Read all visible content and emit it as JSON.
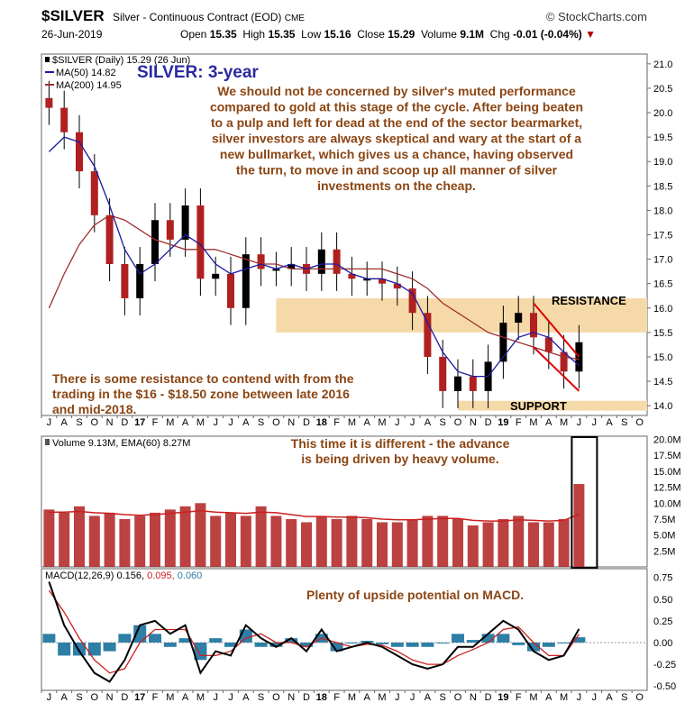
{
  "header": {
    "symbol": "$SILVER",
    "description": "Silver - Continuous Contract (EOD)",
    "exchange": "CME",
    "logo": "© StockCharts.com",
    "date": "26-Jun-2019",
    "open_label": "Open",
    "open": "15.35",
    "high_label": "High",
    "high": "15.35",
    "low_label": "Low",
    "low": "15.16",
    "close_label": "Close",
    "close": "15.29",
    "volume_label": "Volume",
    "volume": "9.1M",
    "chg_label": "Chg",
    "chg": "-0.01 (-0.04%)",
    "chg_icon": "down-triangle-icon"
  },
  "chart_data": [
    {
      "type": "candlestick",
      "panel": "price",
      "legend": {
        "main": "$SILVER (Daily) 15.29 (26 Jun)",
        "ma50": "MA(50) 14.82",
        "ma200": "MA(200) 14.95"
      },
      "ylim": [
        13.8,
        21.2
      ],
      "yticks": [
        "21.0",
        "20.5",
        "20.0",
        "19.5",
        "19.0",
        "18.5",
        "18.0",
        "17.5",
        "17.0",
        "16.5",
        "16.0",
        "15.5",
        "15.0",
        "14.5",
        "14.0"
      ],
      "x": [
        "2016-07",
        "2016-08",
        "2016-09",
        "2016-10",
        "2016-11",
        "2016-12",
        "2017-01",
        "2017-02",
        "2017-03",
        "2017-04",
        "2017-05",
        "2017-06",
        "2017-07",
        "2017-08",
        "2017-09",
        "2017-10",
        "2017-11",
        "2017-12",
        "2018-01",
        "2018-02",
        "2018-03",
        "2018-04",
        "2018-05",
        "2018-06",
        "2018-07",
        "2018-08",
        "2018-09",
        "2018-10",
        "2018-11",
        "2018-12",
        "2019-01",
        "2019-02",
        "2019-03",
        "2019-04",
        "2019-05",
        "2019-06"
      ],
      "close": [
        20.1,
        19.6,
        18.8,
        17.9,
        16.9,
        16.2,
        16.9,
        17.8,
        17.4,
        18.1,
        16.6,
        16.7,
        16.0,
        17.1,
        16.8,
        16.8,
        16.9,
        16.7,
        17.2,
        16.7,
        16.6,
        16.6,
        16.5,
        16.4,
        15.9,
        15.0,
        14.3,
        14.6,
        14.3,
        14.9,
        15.7,
        15.9,
        15.4,
        15.1,
        14.7,
        15.3
      ],
      "ma50": [
        19.2,
        19.5,
        19.4,
        18.9,
        18.1,
        17.2,
        16.7,
        16.9,
        17.2,
        17.5,
        17.3,
        16.9,
        16.7,
        16.8,
        16.9,
        16.8,
        16.9,
        16.8,
        16.9,
        16.9,
        16.7,
        16.6,
        16.6,
        16.5,
        16.3,
        15.7,
        15.1,
        14.7,
        14.6,
        14.6,
        15.0,
        15.4,
        15.5,
        15.4,
        15.1,
        14.82
      ],
      "ma200": [
        16.0,
        16.7,
        17.3,
        17.7,
        17.9,
        17.8,
        17.6,
        17.4,
        17.3,
        17.2,
        17.2,
        17.2,
        17.1,
        17.0,
        16.9,
        16.9,
        16.8,
        16.8,
        16.8,
        16.8,
        16.8,
        16.8,
        16.8,
        16.7,
        16.6,
        16.4,
        16.1,
        15.9,
        15.7,
        15.5,
        15.4,
        15.3,
        15.2,
        15.1,
        15.0,
        14.95
      ],
      "zones": {
        "resistance": {
          "label": "RESISTANCE",
          "range": [
            15.5,
            16.2
          ]
        },
        "support": {
          "label": "SUPPORT",
          "range": [
            13.9,
            14.1
          ]
        }
      },
      "chart_title": "SILVER: 3-year",
      "annotation_main": [
        "We should not be concerned by silver's muted performance",
        "compared to gold at this stage of the cycle. After being beaten",
        "to a pulp and left for dead at the end of the sector bearmarket,",
        "silver investors are always skeptical and wary at the start of a",
        "new bullmarket, which gives us a chance, having observed",
        "the turn, to move in and scoop up all manner of silver",
        "investments on the cheap."
      ],
      "annotation_resistance": [
        "There is some resistance to contend with from the",
        "trading in the $16 - $18.50 zone between late 2016",
        "and mid-2018."
      ]
    },
    {
      "type": "bar",
      "panel": "volume",
      "legend": "Volume 9.13M, EMA(60) 8.27M",
      "ylim": [
        0,
        20.5
      ],
      "yticks": [
        "20.0M",
        "17.5M",
        "15.0M",
        "12.5M",
        "10.0M",
        "7.5M",
        "5.0M",
        "2.5M"
      ],
      "x": [
        "2016-07",
        "2016-08",
        "2016-09",
        "2016-10",
        "2016-11",
        "2016-12",
        "2017-01",
        "2017-02",
        "2017-03",
        "2017-04",
        "2017-05",
        "2017-06",
        "2017-07",
        "2017-08",
        "2017-09",
        "2017-10",
        "2017-11",
        "2017-12",
        "2018-01",
        "2018-02",
        "2018-03",
        "2018-04",
        "2018-05",
        "2018-06",
        "2018-07",
        "2018-08",
        "2018-09",
        "2018-10",
        "2018-11",
        "2018-12",
        "2019-01",
        "2019-02",
        "2019-03",
        "2019-04",
        "2019-05",
        "2019-06"
      ],
      "values": [
        9.0,
        8.5,
        9.5,
        8.0,
        8.5,
        7.5,
        8.0,
        8.5,
        9.0,
        9.5,
        10.0,
        8.0,
        8.5,
        8.0,
        9.5,
        8.0,
        7.5,
        7.0,
        8.0,
        7.5,
        8.0,
        7.5,
        7.0,
        7.0,
        7.5,
        8.0,
        8.0,
        7.5,
        6.5,
        7.0,
        7.5,
        8.0,
        7.0,
        7.0,
        7.5,
        13.0
      ],
      "ema60": [
        8.6,
        8.6,
        8.7,
        8.5,
        8.4,
        8.2,
        8.1,
        8.2,
        8.4,
        8.6,
        8.8,
        8.6,
        8.5,
        8.4,
        8.6,
        8.5,
        8.2,
        7.9,
        7.9,
        7.8,
        7.8,
        7.7,
        7.5,
        7.4,
        7.4,
        7.5,
        7.6,
        7.6,
        7.3,
        7.2,
        7.2,
        7.4,
        7.3,
        7.2,
        7.3,
        8.27
      ],
      "annotation": [
        "This time it is different - the advance",
        "is being driven by heavy volume."
      ]
    },
    {
      "type": "line",
      "panel": "macd",
      "legend": {
        "name": "MACD(12,26,9)",
        "macd": "0.156",
        "signal": "0.095",
        "hist": "0.060"
      },
      "ylim": [
        -0.55,
        0.85
      ],
      "yticks": [
        "0.75",
        "0.50",
        "0.25",
        "0.00",
        "-0.25",
        "-0.50"
      ],
      "x": [
        "2016-07",
        "2016-08",
        "2016-09",
        "2016-10",
        "2016-11",
        "2016-12",
        "2017-01",
        "2017-02",
        "2017-03",
        "2017-04",
        "2017-05",
        "2017-06",
        "2017-07",
        "2017-08",
        "2017-09",
        "2017-10",
        "2017-11",
        "2017-12",
        "2018-01",
        "2018-02",
        "2018-03",
        "2018-04",
        "2018-05",
        "2018-06",
        "2018-07",
        "2018-08",
        "2018-09",
        "2018-10",
        "2018-11",
        "2018-12",
        "2019-01",
        "2019-02",
        "2019-03",
        "2019-04",
        "2019-05",
        "2019-06"
      ],
      "macd": [
        0.7,
        0.2,
        -0.1,
        -0.35,
        -0.45,
        -0.2,
        0.2,
        0.25,
        0.1,
        0.2,
        -0.35,
        -0.1,
        -0.15,
        0.2,
        0.05,
        -0.05,
        0.05,
        -0.1,
        0.15,
        -0.1,
        -0.05,
        0.0,
        -0.05,
        -0.15,
        -0.25,
        -0.3,
        -0.25,
        -0.05,
        -0.05,
        0.1,
        0.25,
        0.15,
        -0.1,
        -0.2,
        -0.15,
        0.156
      ],
      "signal": [
        0.6,
        0.35,
        0.05,
        -0.2,
        -0.35,
        -0.3,
        0.0,
        0.15,
        0.15,
        0.15,
        -0.15,
        -0.15,
        -0.1,
        0.05,
        0.1,
        0.0,
        0.0,
        -0.05,
        0.05,
        0.0,
        -0.05,
        -0.02,
        -0.03,
        -0.1,
        -0.2,
        -0.25,
        -0.25,
        -0.15,
        -0.08,
        0.0,
        0.15,
        0.18,
        0.0,
        -0.15,
        -0.15,
        0.095
      ],
      "annotation": "Plenty of upside potential on MACD."
    }
  ],
  "x_axis": {
    "labels": [
      "J",
      "A",
      "S",
      "O",
      "N",
      "D",
      "17",
      "F",
      "M",
      "A",
      "M",
      "J",
      "J",
      "A",
      "S",
      "O",
      "N",
      "D",
      "18",
      "F",
      "M",
      "A",
      "M",
      "J",
      "J",
      "A",
      "S",
      "O",
      "N",
      "D",
      "19",
      "F",
      "M",
      "A",
      "M",
      "J",
      "J",
      "A",
      "S",
      "O"
    ],
    "bold": [
      "17",
      "18",
      "19"
    ]
  },
  "colors": {
    "annotation": "#8B4513",
    "title": "#2a2aa0",
    "zone": "#f6d9a8",
    "ma50": "#1a1aa0",
    "ma200": "#a03030",
    "volume_bar": "#b02020",
    "ema": "#cc2020",
    "macd_hist": "#2e7fa6",
    "signal": "#cc2020"
  }
}
